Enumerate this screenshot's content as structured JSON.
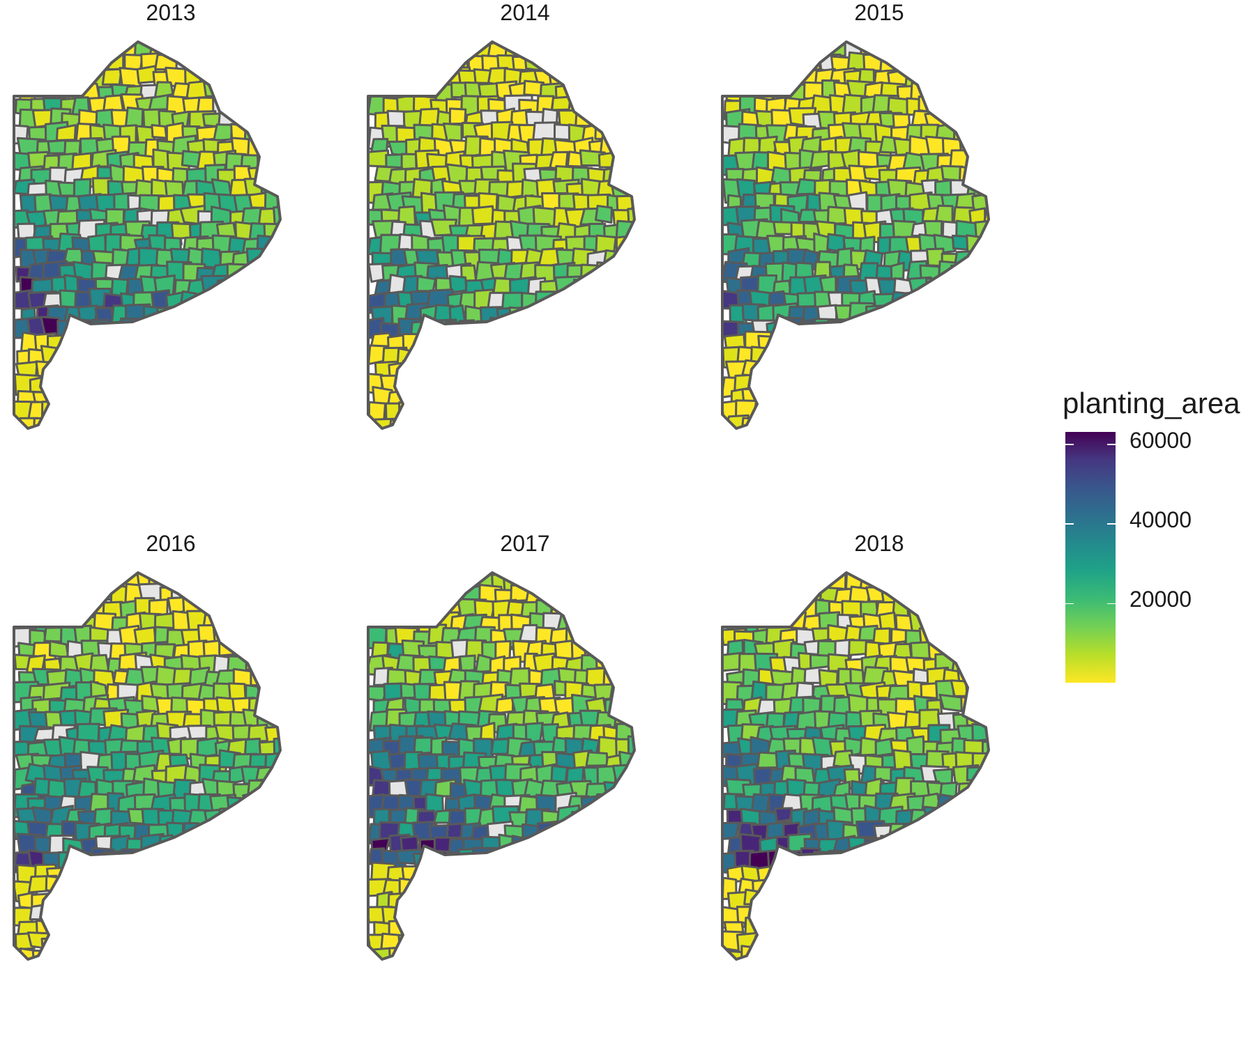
{
  "facets": [
    {
      "title": "2013",
      "palette": [
        "#fde725",
        "#e6e419",
        "#b8de29",
        "#93d741",
        "#73d055",
        "#55c667",
        "#3cbb75",
        "#29af7f",
        "#20a387",
        "#238a8d",
        "#2d708e",
        "#39568c",
        "#453781",
        "#482677",
        "#440154"
      ]
    },
    {
      "title": "2014",
      "palette": [
        "#fde725",
        "#e6e419",
        "#dde318",
        "#b8de29",
        "#a0da39",
        "#73d055",
        "#55c667",
        "#3cbb75",
        "#20a387",
        "#238a8d",
        "#2d708e",
        "#39568c"
      ]
    },
    {
      "title": "2015",
      "palette": [
        "#fde725",
        "#e6e419",
        "#dde318",
        "#b8de29",
        "#93d741",
        "#73d055",
        "#55c667",
        "#3cbb75",
        "#20a387",
        "#238a8d",
        "#2d708e",
        "#33638d",
        "#39568c",
        "#453781"
      ]
    },
    {
      "title": "2016",
      "palette": [
        "#fde725",
        "#e6e419",
        "#b8de29",
        "#93d741",
        "#73d055",
        "#55c667",
        "#3cbb75",
        "#29af7f",
        "#20a387",
        "#238a8d",
        "#2d708e",
        "#39568c",
        "#453781",
        "#482677"
      ]
    },
    {
      "title": "2017",
      "palette": [
        "#fde725",
        "#e6e419",
        "#b8de29",
        "#93d741",
        "#73d055",
        "#55c667",
        "#3cbb75",
        "#20a387",
        "#238a8d",
        "#2d708e",
        "#33638d",
        "#39568c",
        "#453781",
        "#482677",
        "#440154"
      ]
    },
    {
      "title": "2018",
      "palette": [
        "#fde725",
        "#e6e419",
        "#b8de29",
        "#93d741",
        "#73d055",
        "#55c667",
        "#3cbb75",
        "#20a387",
        "#238a8d",
        "#2d708e",
        "#39568c",
        "#453781",
        "#482677",
        "#440154"
      ]
    }
  ],
  "legend": {
    "title": "planting_area",
    "ticks": [
      {
        "label": "60000",
        "value": 60000
      },
      {
        "label": "40000",
        "value": 40000
      },
      {
        "label": "20000",
        "value": 20000
      }
    ],
    "range": [
      0,
      63000
    ],
    "colors": [
      "#fde725",
      "#b8de29",
      "#73d055",
      "#3cbb75",
      "#20a387",
      "#238a8d",
      "#2d708e",
      "#39568c",
      "#453781",
      "#440154"
    ]
  },
  "no_data_color": "#e5e5e5",
  "border_color": "#595959"
}
